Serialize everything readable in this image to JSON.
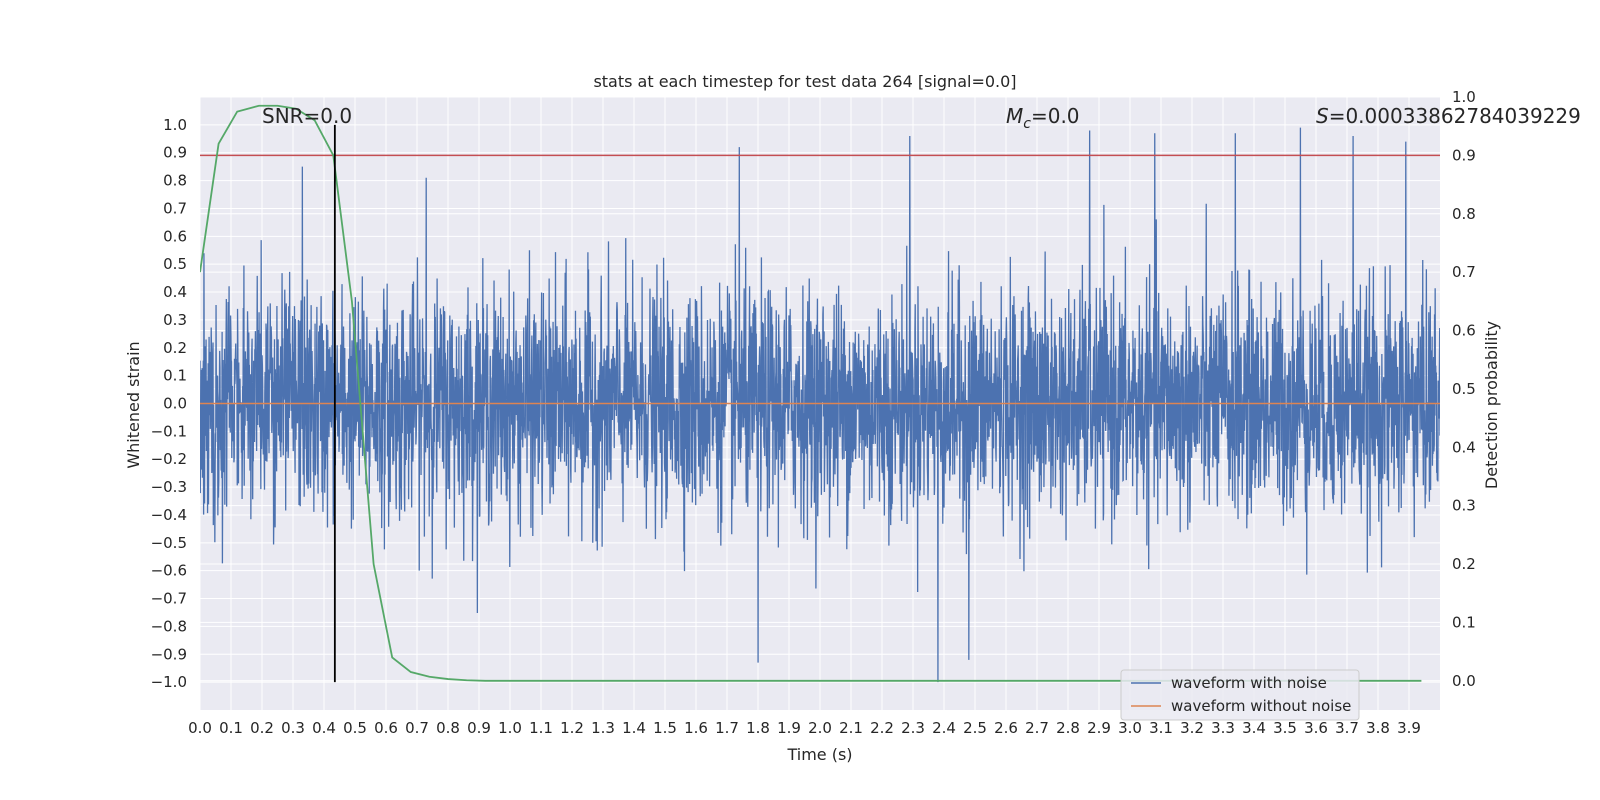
{
  "chart_data": {
    "type": "line",
    "title": "stats at each timestep for test data 264 [signal=0.0]",
    "xlabel": "Time (s)",
    "ylabel": "Whitened strain",
    "y2label": "Detection probability",
    "xlim": [
      0.0,
      4.0
    ],
    "ylim": [
      -1.1,
      1.1
    ],
    "y2lim": [
      -0.05,
      1.0
    ],
    "xticks": [
      0.0,
      0.1,
      0.2,
      0.3,
      0.4,
      0.5,
      0.6,
      0.7,
      0.8,
      0.9,
      1.0,
      1.1,
      1.2,
      1.3,
      1.4,
      1.5,
      1.6,
      1.7,
      1.8,
      1.9,
      2.0,
      2.1,
      2.2,
      2.3,
      2.4,
      2.5,
      2.6,
      2.7,
      2.8,
      2.9,
      3.0,
      3.1,
      3.2,
      3.3,
      3.4,
      3.5,
      3.6,
      3.7,
      3.8,
      3.9
    ],
    "yticks": [
      1.0,
      0.9,
      0.8,
      0.7,
      0.6,
      0.5,
      0.4,
      0.3,
      0.2,
      0.1,
      0.0,
      -0.1,
      -0.2,
      -0.3,
      -0.4,
      -0.5,
      -0.6,
      -0.7,
      -0.8,
      -0.9,
      -1.0
    ],
    "y2ticks": [
      1.0,
      0.9,
      0.8,
      0.7,
      0.6,
      0.5,
      0.4,
      0.3,
      0.2,
      0.1,
      0.0
    ],
    "grid": true,
    "legend_position": "bottom-right",
    "annotations": {
      "snr": "SNR=0.0",
      "mc_symbol": "M",
      "mc_sub": "c",
      "mc_value": "=0.0",
      "s_symbol": "S",
      "s_value": "=0.00033862784039229"
    },
    "vertical_marker_time": 0.435,
    "threshold_probability": 0.9,
    "series": [
      {
        "name": "waveform with noise",
        "color": "#4c72b0",
        "axis": "left",
        "noise_std": 0.2,
        "noise_clip": 1.0,
        "peaks": [
          {
            "x": 0.33,
            "y": 0.85
          },
          {
            "x": 0.73,
            "y": 0.81
          },
          {
            "x": 1.74,
            "y": 0.92
          },
          {
            "x": 1.8,
            "y": -0.93
          },
          {
            "x": 2.29,
            "y": 0.96
          },
          {
            "x": 2.38,
            "y": -1.0
          },
          {
            "x": 2.48,
            "y": -0.92
          },
          {
            "x": 2.87,
            "y": 0.98
          },
          {
            "x": 3.08,
            "y": 0.97
          },
          {
            "x": 3.34,
            "y": 0.97
          },
          {
            "x": 3.55,
            "y": 0.99
          },
          {
            "x": 3.72,
            "y": 0.96
          },
          {
            "x": 3.89,
            "y": 0.94
          }
        ]
      },
      {
        "name": "waveform without noise",
        "color": "#dd8452",
        "axis": "left",
        "x": [
          0.0,
          4.0
        ],
        "y": [
          0.0,
          0.0
        ]
      },
      {
        "color": "#55a868",
        "axis": "right",
        "x": [
          0.0,
          0.06,
          0.12,
          0.19,
          0.25,
          0.31,
          0.37,
          0.43,
          0.49,
          0.56,
          0.62,
          0.68,
          0.74,
          0.8,
          0.86,
          0.92,
          1.0,
          1.5,
          2.0,
          2.5,
          3.0,
          3.5,
          3.94
        ],
        "y": [
          0.7,
          0.92,
          0.975,
          0.985,
          0.985,
          0.98,
          0.96,
          0.9,
          0.65,
          0.2,
          0.04,
          0.015,
          0.007,
          0.003,
          0.001,
          0.0,
          0.0,
          0.0,
          0.0,
          0.0,
          0.0,
          0.0,
          0.0
        ]
      }
    ],
    "colors": {
      "threshold": "#c44e52",
      "marker": "#000000",
      "grid": "#ffffff",
      "background": "#eaeaf2"
    }
  }
}
